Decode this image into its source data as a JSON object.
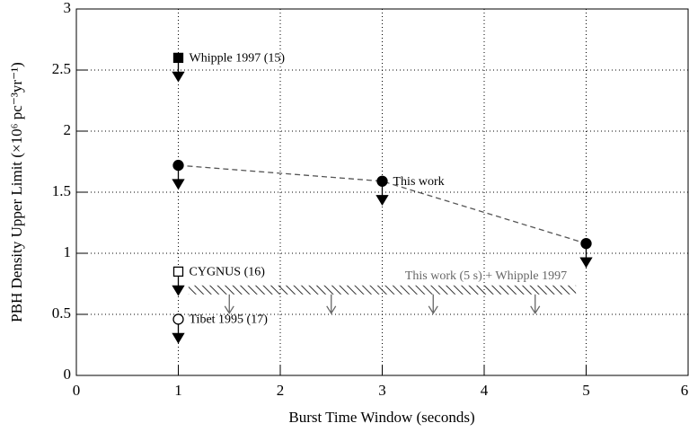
{
  "chart_data": {
    "type": "scatter",
    "x_label": "Burst Time Window (seconds)",
    "y_label": "PBH Density Upper Limit (×10⁶ pc⁻³yr⁻¹)",
    "xlim": [
      0,
      6
    ],
    "xticks": [
      0,
      1,
      2,
      3,
      4,
      5,
      6
    ],
    "ylim": [
      0,
      3
    ],
    "yticks": [
      0,
      0.5,
      1,
      1.5,
      2,
      2.5,
      3
    ],
    "grid": true,
    "series": [
      {
        "name": "Whipple 1997 (15)",
        "marker": "filled-square",
        "x": [
          1
        ],
        "values": [
          2.6
        ]
      },
      {
        "name": "This work",
        "marker": "filled-circle",
        "line": "dashed",
        "x": [
          1,
          3,
          5
        ],
        "values": [
          1.72,
          1.59,
          1.08
        ]
      },
      {
        "name": "CYGNUS (16)",
        "marker": "open-square",
        "x": [
          1
        ],
        "values": [
          0.85
        ]
      },
      {
        "name": "Tibet 1995 (17)",
        "marker": "open-circle",
        "x": [
          1
        ],
        "values": [
          0.46
        ]
      }
    ],
    "band": {
      "label": "This work (5 s) + Whipple 1997",
      "x": [
        1.1,
        4.9
      ],
      "y": 0.7,
      "arrows_x": [
        1.5,
        2.5,
        3.5,
        4.5
      ]
    }
  }
}
